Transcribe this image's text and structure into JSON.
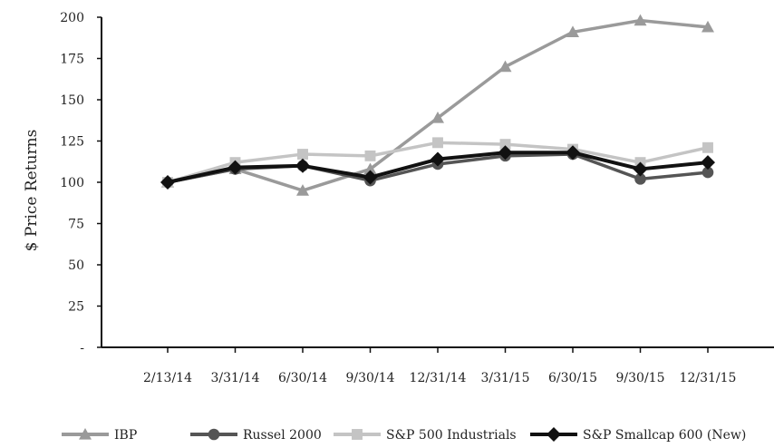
{
  "chart_data": {
    "type": "line",
    "ylabel": "$ Price Returns",
    "ylim": [
      0,
      200
    ],
    "yticks": [
      {
        "value": 0,
        "label": "-"
      },
      {
        "value": 25,
        "label": "25"
      },
      {
        "value": 50,
        "label": "50"
      },
      {
        "value": 75,
        "label": "75"
      },
      {
        "value": 100,
        "label": "100"
      },
      {
        "value": 125,
        "label": "125"
      },
      {
        "value": 150,
        "label": "150"
      },
      {
        "value": 175,
        "label": "175"
      },
      {
        "value": 200,
        "label": "200"
      }
    ],
    "categories": [
      "2/13/14",
      "3/31/14",
      "6/30/14",
      "9/30/14",
      "12/31/14",
      "3/31/15",
      "6/30/15",
      "9/30/15",
      "12/31/15"
    ],
    "legend_position": "bottom",
    "grid": false,
    "series": [
      {
        "name": "IBP",
        "marker": "triangle",
        "color": "#9a9a9a",
        "values": [
          100,
          108,
          95,
          108,
          139,
          170,
          191,
          198,
          194
        ]
      },
      {
        "name": "Russel 2000",
        "marker": "circle",
        "color": "#555555",
        "values": [
          100,
          108,
          110,
          101,
          111,
          116,
          117,
          102,
          106
        ]
      },
      {
        "name": "S&P 500 Industrials",
        "marker": "square",
        "color": "#c4c4c4",
        "values": [
          100,
          112,
          117,
          116,
          124,
          123,
          120,
          112,
          121
        ]
      },
      {
        "name": "S&P Smallcap 600 (New)",
        "marker": "diamond",
        "color": "#111111",
        "values": [
          100,
          109,
          110,
          103,
          114,
          118,
          118,
          108,
          112
        ]
      }
    ]
  }
}
